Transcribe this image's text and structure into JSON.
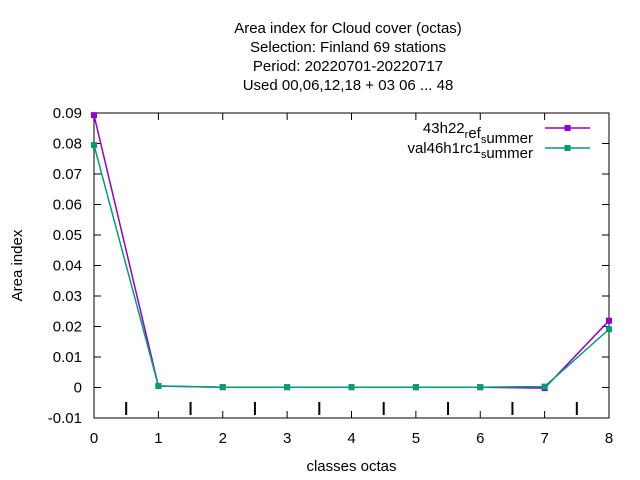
{
  "chart_data": {
    "type": "line",
    "title_lines": [
      "Area index  for Cloud cover (octas)",
      "Selection: Finland     69 stations",
      "Period: 20220701-20220717",
      "Used  00,06,12,18  + 03 06 ... 48"
    ],
    "xlabel": "classes octas",
    "ylabel": "Area index",
    "xlim": [
      0,
      8
    ],
    "ylim": [
      -0.01,
      0.09
    ],
    "x_ticks": [
      "0",
      "1",
      "2",
      "3",
      "4",
      "5",
      "6",
      "7",
      "8"
    ],
    "y_ticks": [
      "-0.01",
      "0",
      "0.01",
      "0.02",
      "0.03",
      "0.04",
      "0.05",
      "0.06",
      "0.07",
      "0.08",
      "0.09"
    ],
    "x": [
      0,
      1,
      2,
      3,
      4,
      5,
      6,
      7,
      8
    ],
    "series": [
      {
        "legend_main": "43h22",
        "legend_sub1": "r",
        "legend_mid": "ef",
        "legend_sub2": "s",
        "legend_tail": "ummer",
        "color": "#9400d3",
        "values": [
          0.0893,
          0.0005,
          0.0001,
          0.0001,
          0.0001,
          0.0001,
          0.0001,
          -0.0002,
          0.0219
        ]
      },
      {
        "legend_main": "val46h1rc1",
        "legend_sub1": "s",
        "legend_mid": "",
        "legend_sub2": "",
        "legend_tail": "ummer",
        "color": "#009e73",
        "values": [
          0.0795,
          0.0005,
          0.0001,
          0.0001,
          0.0001,
          0.0001,
          0.0001,
          0.0003,
          0.0191
        ]
      }
    ],
    "grid": false,
    "legend_position": "top-right"
  }
}
